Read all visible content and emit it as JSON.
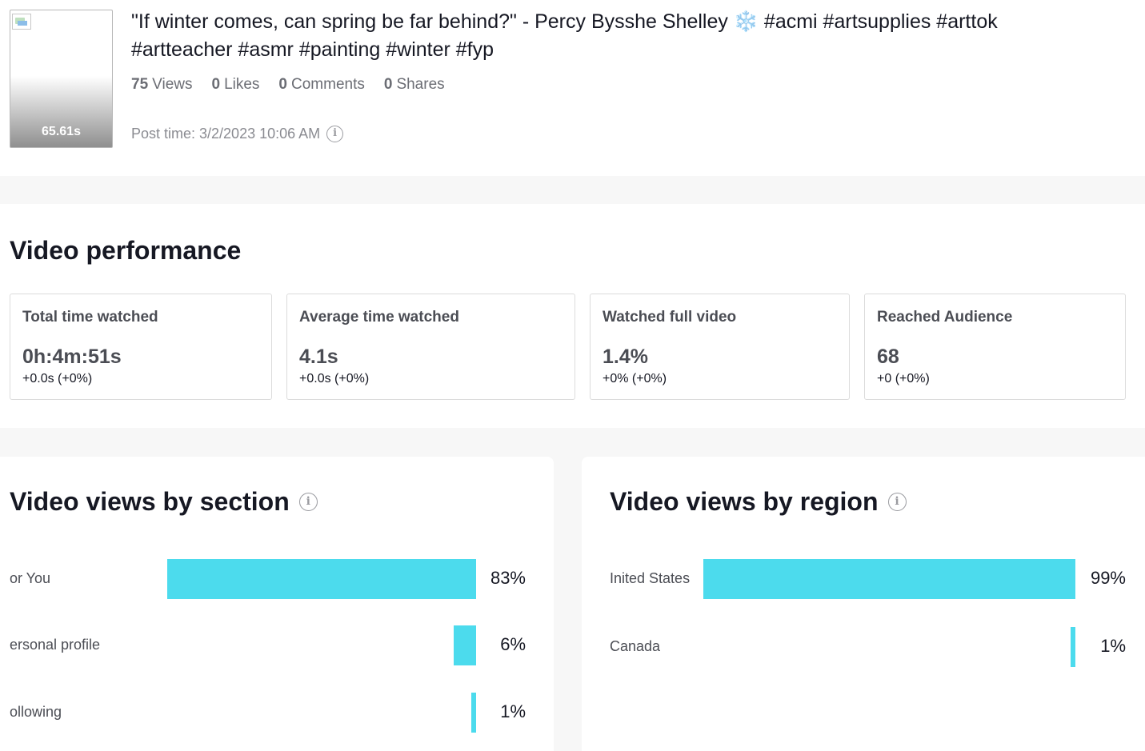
{
  "video": {
    "duration": "65.61s",
    "title_line1": "\"If winter comes, can spring be far behind?\" - Percy Bysshe Shelley",
    "snowflake": "❄️",
    "title_tags1": "#acmi #artsupplies #arttok",
    "title_line2": "#artteacher #asmr #painting #winter #fyp",
    "stats": [
      {
        "num": "75",
        "label": "Views"
      },
      {
        "num": "0",
        "label": "Likes"
      },
      {
        "num": "0",
        "label": "Comments"
      },
      {
        "num": "0",
        "label": "Shares"
      }
    ],
    "post_time": "Post time: 3/2/2023 10:06 AM",
    "info_glyph": "i"
  },
  "performance": {
    "title": "Video performance",
    "cards": [
      {
        "label": "Total time watched",
        "value": "0h:4m:51s",
        "delta": "+0.0s (+0%)"
      },
      {
        "label": "Average time watched",
        "value": "4.1s",
        "delta": "+0.0s (+0%)"
      },
      {
        "label": "Watched full video",
        "value": "1.4%",
        "delta": "+0% (+0%)"
      },
      {
        "label": "Reached Audience",
        "value": "68",
        "delta": "+0 (+0%)"
      }
    ]
  },
  "section_views": {
    "title": "Video views by section",
    "rows": [
      {
        "label": "or You",
        "pct_text": "83%",
        "value": 83
      },
      {
        "label": "ersonal profile",
        "pct_text": "6%",
        "value": 6
      },
      {
        "label": "ollowing",
        "pct_text": "1%",
        "value": 1
      }
    ]
  },
  "region_views": {
    "title": "Video views by region",
    "rows": [
      {
        "label": "Inited States",
        "pct_text": "99%",
        "value": 99
      },
      {
        "label": "Canada",
        "pct_text": "1%",
        "value": 1
      }
    ]
  },
  "colors": {
    "bar": "#4cdbed",
    "text": "#161823",
    "muted": "#6b6d74"
  }
}
